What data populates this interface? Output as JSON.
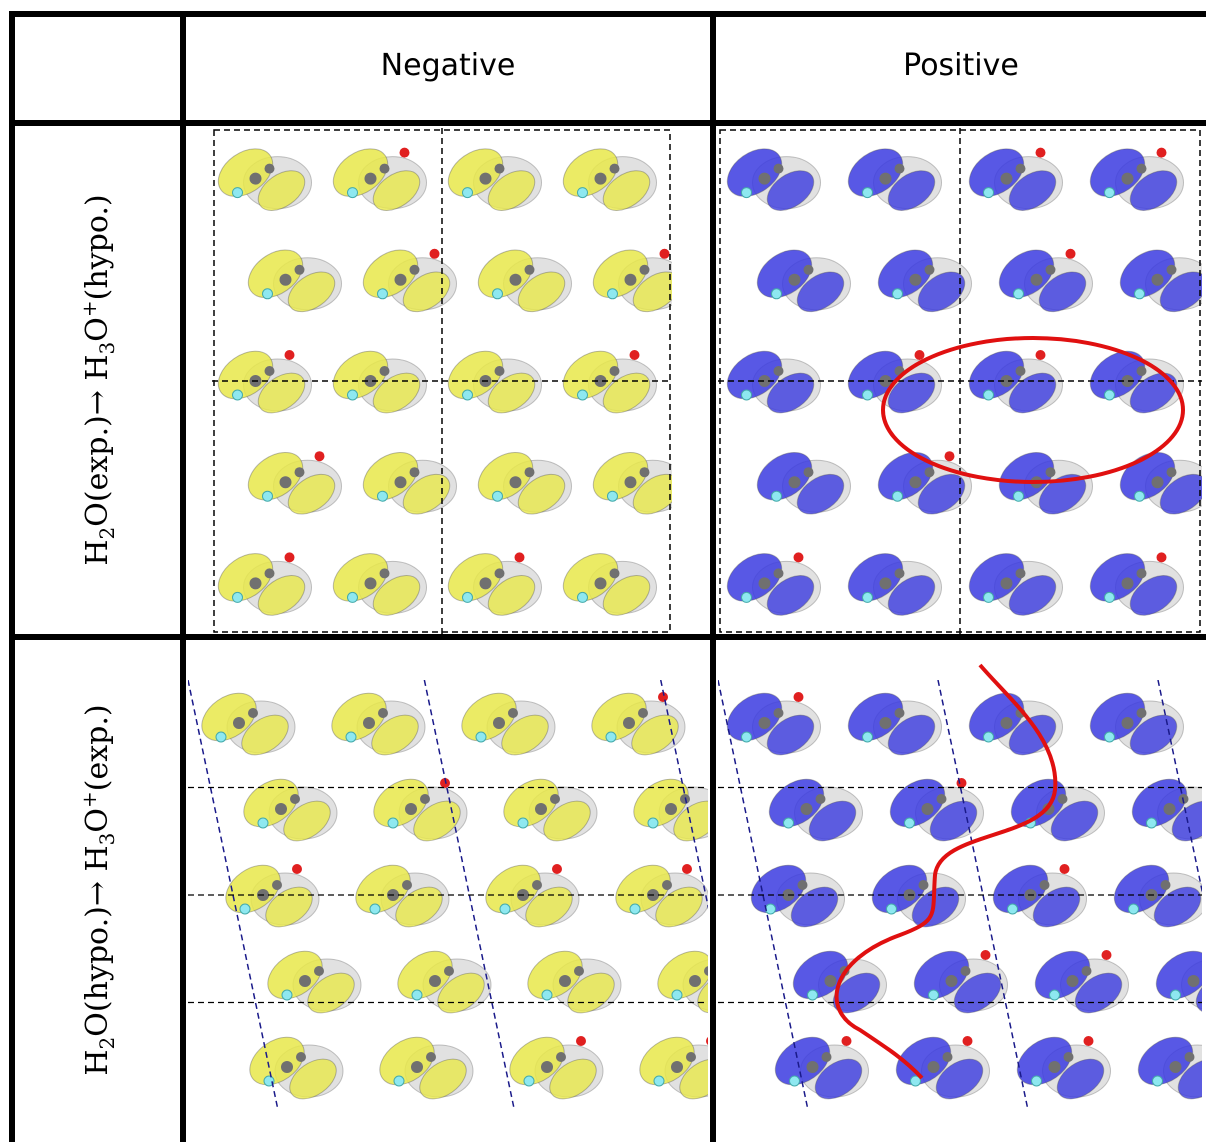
{
  "columns": [
    {
      "label": "Negative",
      "color": "#e8e84a"
    },
    {
      "label": "Positive",
      "color": "#3b3be0"
    }
  ],
  "rows": [
    {
      "label_parts": [
        "H",
        "2",
        "O(exp.)→ H",
        "3",
        "O",
        "+",
        "(hypo.)"
      ],
      "panels": [
        "yellow-isosurface-grid",
        "blue-isosurface-grid-with-ellipse"
      ]
    },
    {
      "label_parts": [
        "H",
        "2",
        "O(hypo.)→ H",
        "3",
        "O",
        "+",
        "(exp.)"
      ],
      "panels": [
        "yellow-isosurface-slanted-cell",
        "blue-isosurface-slanted-cell-with-curve"
      ]
    }
  ],
  "colors": {
    "negative_isosurface": "#e8e84a",
    "positive_isosurface": "#3b3be0",
    "highlight": "#e01010",
    "grid_line": "#000000",
    "atom_oxygen": "#e02020",
    "atom_fluorine": "#8ee8f0",
    "atom_carbon": "#707070"
  }
}
